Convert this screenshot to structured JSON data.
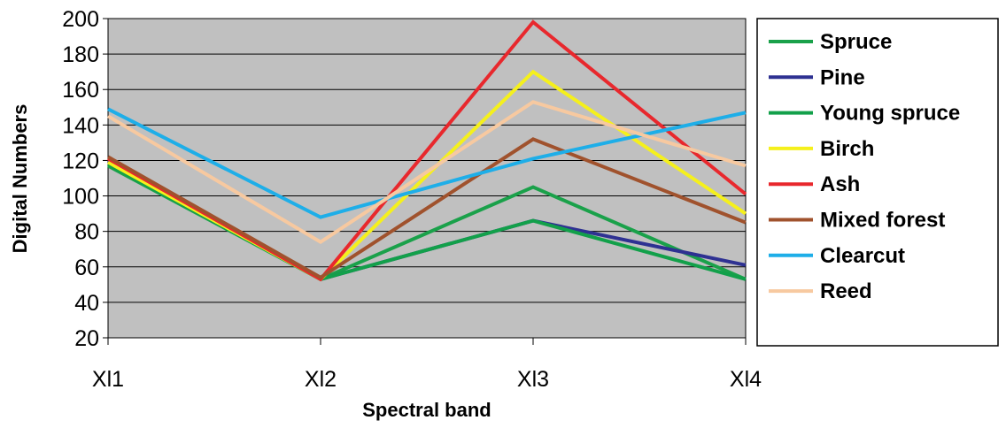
{
  "chart_data": {
    "type": "line",
    "title": "",
    "xlabel": "Spectral band",
    "ylabel": "Digital Numbers",
    "categories": [
      "Xl1",
      "Xl2",
      "Xl3",
      "Xl4"
    ],
    "ylim": [
      20,
      200
    ],
    "yticks": [
      20,
      40,
      60,
      80,
      100,
      120,
      140,
      160,
      180,
      200
    ],
    "grid": true,
    "legend_position": "right",
    "plot_background": "#c0c0c0",
    "series": [
      {
        "name": "Spruce",
        "color": "#1aa14a",
        "values": [
          117,
          53,
          105,
          53
        ]
      },
      {
        "name": "Pine",
        "color": "#2e3192",
        "values": [
          120,
          53,
          86,
          61
        ]
      },
      {
        "name": "Young spruce",
        "color": "#12a04a",
        "values": [
          118,
          53,
          86,
          53
        ]
      },
      {
        "name": "Birch",
        "color": "#f5f01c",
        "values": [
          119,
          53,
          170,
          90
        ]
      },
      {
        "name": "Ash",
        "color": "#e8282d",
        "values": [
          121,
          53,
          198,
          101
        ]
      },
      {
        "name": "Mixed forest",
        "color": "#a0522d",
        "values": [
          122,
          54,
          132,
          85
        ]
      },
      {
        "name": "Clearcut",
        "color": "#1eaee8",
        "values": [
          149,
          88,
          121,
          147
        ]
      },
      {
        "name": "Reed",
        "color": "#f7c9a0",
        "values": [
          145,
          74,
          153,
          117
        ]
      }
    ]
  }
}
